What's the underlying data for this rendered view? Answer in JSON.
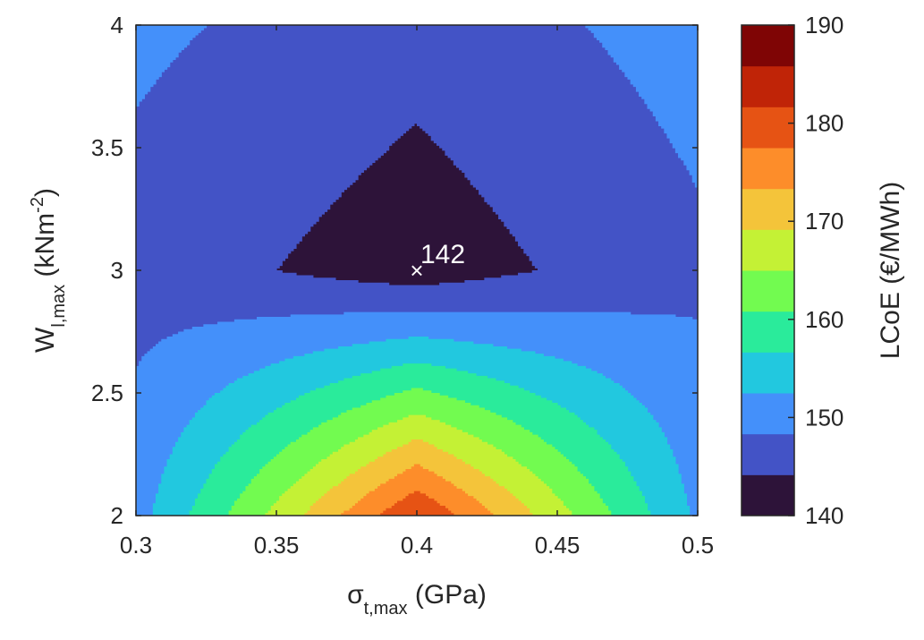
{
  "chart_data": {
    "type": "heatmap",
    "subtype": "filled-contour",
    "x": [
      0.3,
      0.4,
      0.5
    ],
    "y": [
      2,
      3,
      4
    ],
    "values": [
      [
        153,
        190,
        154
      ],
      [
        148,
        142,
        149
      ],
      [
        151,
        147,
        152
      ]
    ],
    "xlim": [
      0.3,
      0.5
    ],
    "ylim": [
      2,
      4
    ],
    "xticks": [
      "0.3",
      "0.35",
      "0.4",
      "0.45",
      "0.5"
    ],
    "yticks": [
      "2",
      "2.5",
      "3",
      "3.5",
      "4"
    ],
    "xlabel": {
      "base": "σ",
      "sub": "t,max",
      "unit": " (GPa)"
    },
    "ylabel": {
      "base": "W",
      "sub": "l,max",
      "rest": " (kNm",
      "sup": "-2",
      "end": ")"
    },
    "colorbar": {
      "label": "LCoE (€/MWh)",
      "min": 140,
      "max": 190,
      "step": 5,
      "ticks": [
        "140",
        "150",
        "160",
        "170",
        "180",
        "190"
      ],
      "colors": [
        "#2d1339",
        "#4353c6",
        "#4490fa",
        "#22c8df",
        "#2aeb9b",
        "#72fb50",
        "#c4f135",
        "#f4c43a",
        "#fd8d2a",
        "#e65314",
        "#c02407",
        "#7f0505"
      ]
    },
    "marker": {
      "x": 0.4,
      "y": 3,
      "symbol": "×",
      "label": "142"
    },
    "grid": false,
    "legend": "none"
  }
}
